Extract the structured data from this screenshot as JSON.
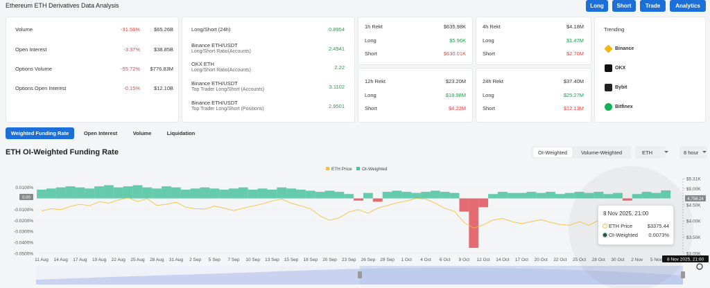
{
  "header": {
    "title": "Ethereum ETH Derivatives Data Analysis",
    "buttons": [
      "Long",
      "Short",
      "Trade",
      "Analytics"
    ]
  },
  "stats": {
    "rows": [
      {
        "label": "Volume",
        "change": "-31.56%",
        "value": "$65.26B"
      },
      {
        "label": "Open Interest",
        "change": "-3.37%",
        "value": "$38.85B"
      },
      {
        "label": "Options Volume",
        "change": "-55.72%",
        "value": "$776.83M"
      },
      {
        "label": "Options Open Interest",
        "change": "-0.15%",
        "value": "$12.10B"
      }
    ]
  },
  "ratios": {
    "rows": [
      {
        "label": "Long/Short (24h)",
        "value": "0.8954"
      },
      {
        "label": "Binance ETH/USDT",
        "sublabel": "Long/Short Ratio(Accounts)",
        "value": "2.4941"
      },
      {
        "label": "OKX ETH",
        "sublabel": "Long/Short Ratio(Accounts)",
        "value": "2.22"
      },
      {
        "label": "Binance ETH/USDT",
        "sublabel": "Top Trader Long/Short (Accounts)",
        "value": "3.1102"
      },
      {
        "label": "Binance ETH/USDT",
        "sublabel": "Top Trader Long/Short (Positions)",
        "value": "2.9501"
      }
    ]
  },
  "rekt": [
    {
      "rows": [
        {
          "label": "1h Rekt",
          "value": "$635.98K"
        },
        {
          "label": "Long",
          "value": "$5.96K"
        },
        {
          "label": "Short",
          "value": "$630.01K"
        }
      ]
    },
    {
      "rows": [
        {
          "label": "4h Rekt",
          "value": "$4.18M"
        },
        {
          "label": "Long",
          "value": "$1.47M"
        },
        {
          "label": "Short",
          "value": "$2.70M"
        }
      ]
    },
    {
      "rows": [
        {
          "label": "12h Rekt",
          "value": "$23.20M"
        },
        {
          "label": "Long",
          "value": "$18.98M"
        },
        {
          "label": "Short",
          "value": "$4.22M"
        }
      ]
    },
    {
      "rows": [
        {
          "label": "24h Rekt",
          "value": "$37.40M"
        },
        {
          "label": "Long",
          "value": "$25.27M"
        },
        {
          "label": "Short",
          "value": "$12.13M"
        }
      ]
    }
  ],
  "trending": {
    "title": "Trending",
    "items": [
      "Binance",
      "OKX",
      "Bybit",
      "Bitfinex"
    ]
  },
  "tabs": [
    "Weighted Funding Rate",
    "Open Interest",
    "Volume",
    "Liquidation"
  ],
  "section": {
    "title": "ETH OI-Weighted Funding Rate",
    "toggles": [
      "OI-Weighted",
      "Volume-Weighted"
    ],
    "selects": [
      "ETH",
      "8 hour"
    ]
  },
  "chart": {
    "type": "bar-line",
    "grid": true,
    "categories": [
      "11 Aug",
      null,
      "14 Aug",
      null,
      "17 Aug",
      null,
      "19 Aug",
      null,
      "22 Aug",
      null,
      "25 Aug",
      null,
      "28 Aug",
      null,
      "31 Aug",
      null,
      "2 Sep",
      null,
      "5 Sep",
      null,
      "7 Sep",
      null,
      "10 Sep",
      null,
      "13 Sep",
      null,
      "15 Sep",
      null,
      "18 Sep",
      null,
      "20 Sep",
      null,
      "23 Sep",
      null,
      "26 Sep",
      null,
      "29 Sep",
      null,
      "1 Oct",
      null,
      "4 Oct",
      null,
      "6 Oct",
      null,
      "9 Oct",
      null,
      "12 Oct",
      null,
      "14 Oct",
      null,
      "17 Oct",
      null,
      "20 Oct",
      null,
      "22 Oct",
      null,
      "25 Oct",
      null,
      "28 Oct",
      null,
      "30 Oct",
      null,
      "2 Nov",
      null,
      "5 Nov",
      null
    ],
    "series": [
      {
        "name": "ETH Price",
        "color": "#f5c242",
        "axis": "y2",
        "values": [
          4310,
          4380,
          4350,
          4450,
          4520,
          4470,
          4600,
          4550,
          4650,
          4720,
          4600,
          4690,
          4480,
          4520,
          4580,
          4430,
          4380,
          4370,
          4460,
          4400,
          4320,
          4400,
          4460,
          4530,
          4620,
          4680,
          4550,
          4470,
          4380,
          4160,
          4020,
          4100,
          4280,
          4350,
          4240,
          4400,
          4480,
          4560,
          4620,
          4700,
          4680,
          4550,
          4390,
          4300,
          3950,
          3780,
          3880,
          4030,
          4080,
          3980,
          3920,
          3980,
          4040,
          3960,
          3890,
          3870,
          3980,
          3870,
          4020,
          3710,
          3450,
          3380,
          3300,
          3350,
          3420,
          3375.44
        ]
      },
      {
        "name": "OI-Weighted",
        "color": "#4cc3a0",
        "negative_color": "#e0525a",
        "values": [
          0.008,
          0.009,
          0.01,
          0.011,
          0.01,
          0.009,
          0.011,
          0.012,
          0.01,
          0.011,
          0.012,
          0.01,
          0.009,
          0.011,
          0.01,
          0.008,
          0.009,
          0.01,
          0.009,
          0.008,
          0.009,
          0.01,
          0.008,
          0.009,
          0.008,
          0.01,
          0.009,
          0.008,
          0.007,
          0.006,
          0.007,
          0.006,
          0.004,
          -0.002,
          0.005,
          -0.003,
          0.006,
          0.007,
          0.006,
          0.005,
          0.006,
          0.007,
          0.006,
          0.005,
          -0.012,
          -0.045,
          -0.008,
          0.004,
          0.006,
          0.005,
          0.005,
          0.006,
          0.005,
          0.006,
          0.004,
          0.005,
          0.006,
          0.005,
          0.006,
          0.004,
          0.005,
          -0.002,
          0.004,
          0.006,
          0.005,
          0.0073
        ]
      }
    ],
    "ylim": [
      -0.05,
      0.018
    ],
    "yticks": [
      {
        "value": 0.01,
        "label": "0.0100%"
      },
      {
        "value": -0.01,
        "label": "-0.0100%"
      },
      {
        "value": -0.02,
        "label": "-0.0200%"
      },
      {
        "value": -0.03,
        "label": "-0.0300%"
      },
      {
        "value": -0.04,
        "label": "-0.0400%"
      },
      {
        "value": -0.05,
        "label": "-0.0500%"
      }
    ],
    "y2lim": [
      3000,
      5310
    ],
    "y2ticks": [
      {
        "value": 5310,
        "label": "$5.31K"
      },
      {
        "value": 5000,
        "label": "$5.00K"
      },
      {
        "value": 4500,
        "label": "$4.50K"
      },
      {
        "value": 4000,
        "label": "$4.00K"
      },
      {
        "value": 3500,
        "label": "$3.50K"
      },
      {
        "value": 3000,
        "label": "$3.00K"
      }
    ],
    "crosshair": {
      "y_label": "0.00",
      "y2_label": "4,758.24",
      "x_label": "8 Nov 2025, 21:00"
    },
    "tooltip": {
      "title": "8 Nov 2025, 21:00",
      "rows": [
        {
          "label": "ETH Price",
          "value": "$3375.44"
        },
        {
          "label": "OI-Weighted",
          "value": "0.0073%"
        }
      ]
    }
  }
}
